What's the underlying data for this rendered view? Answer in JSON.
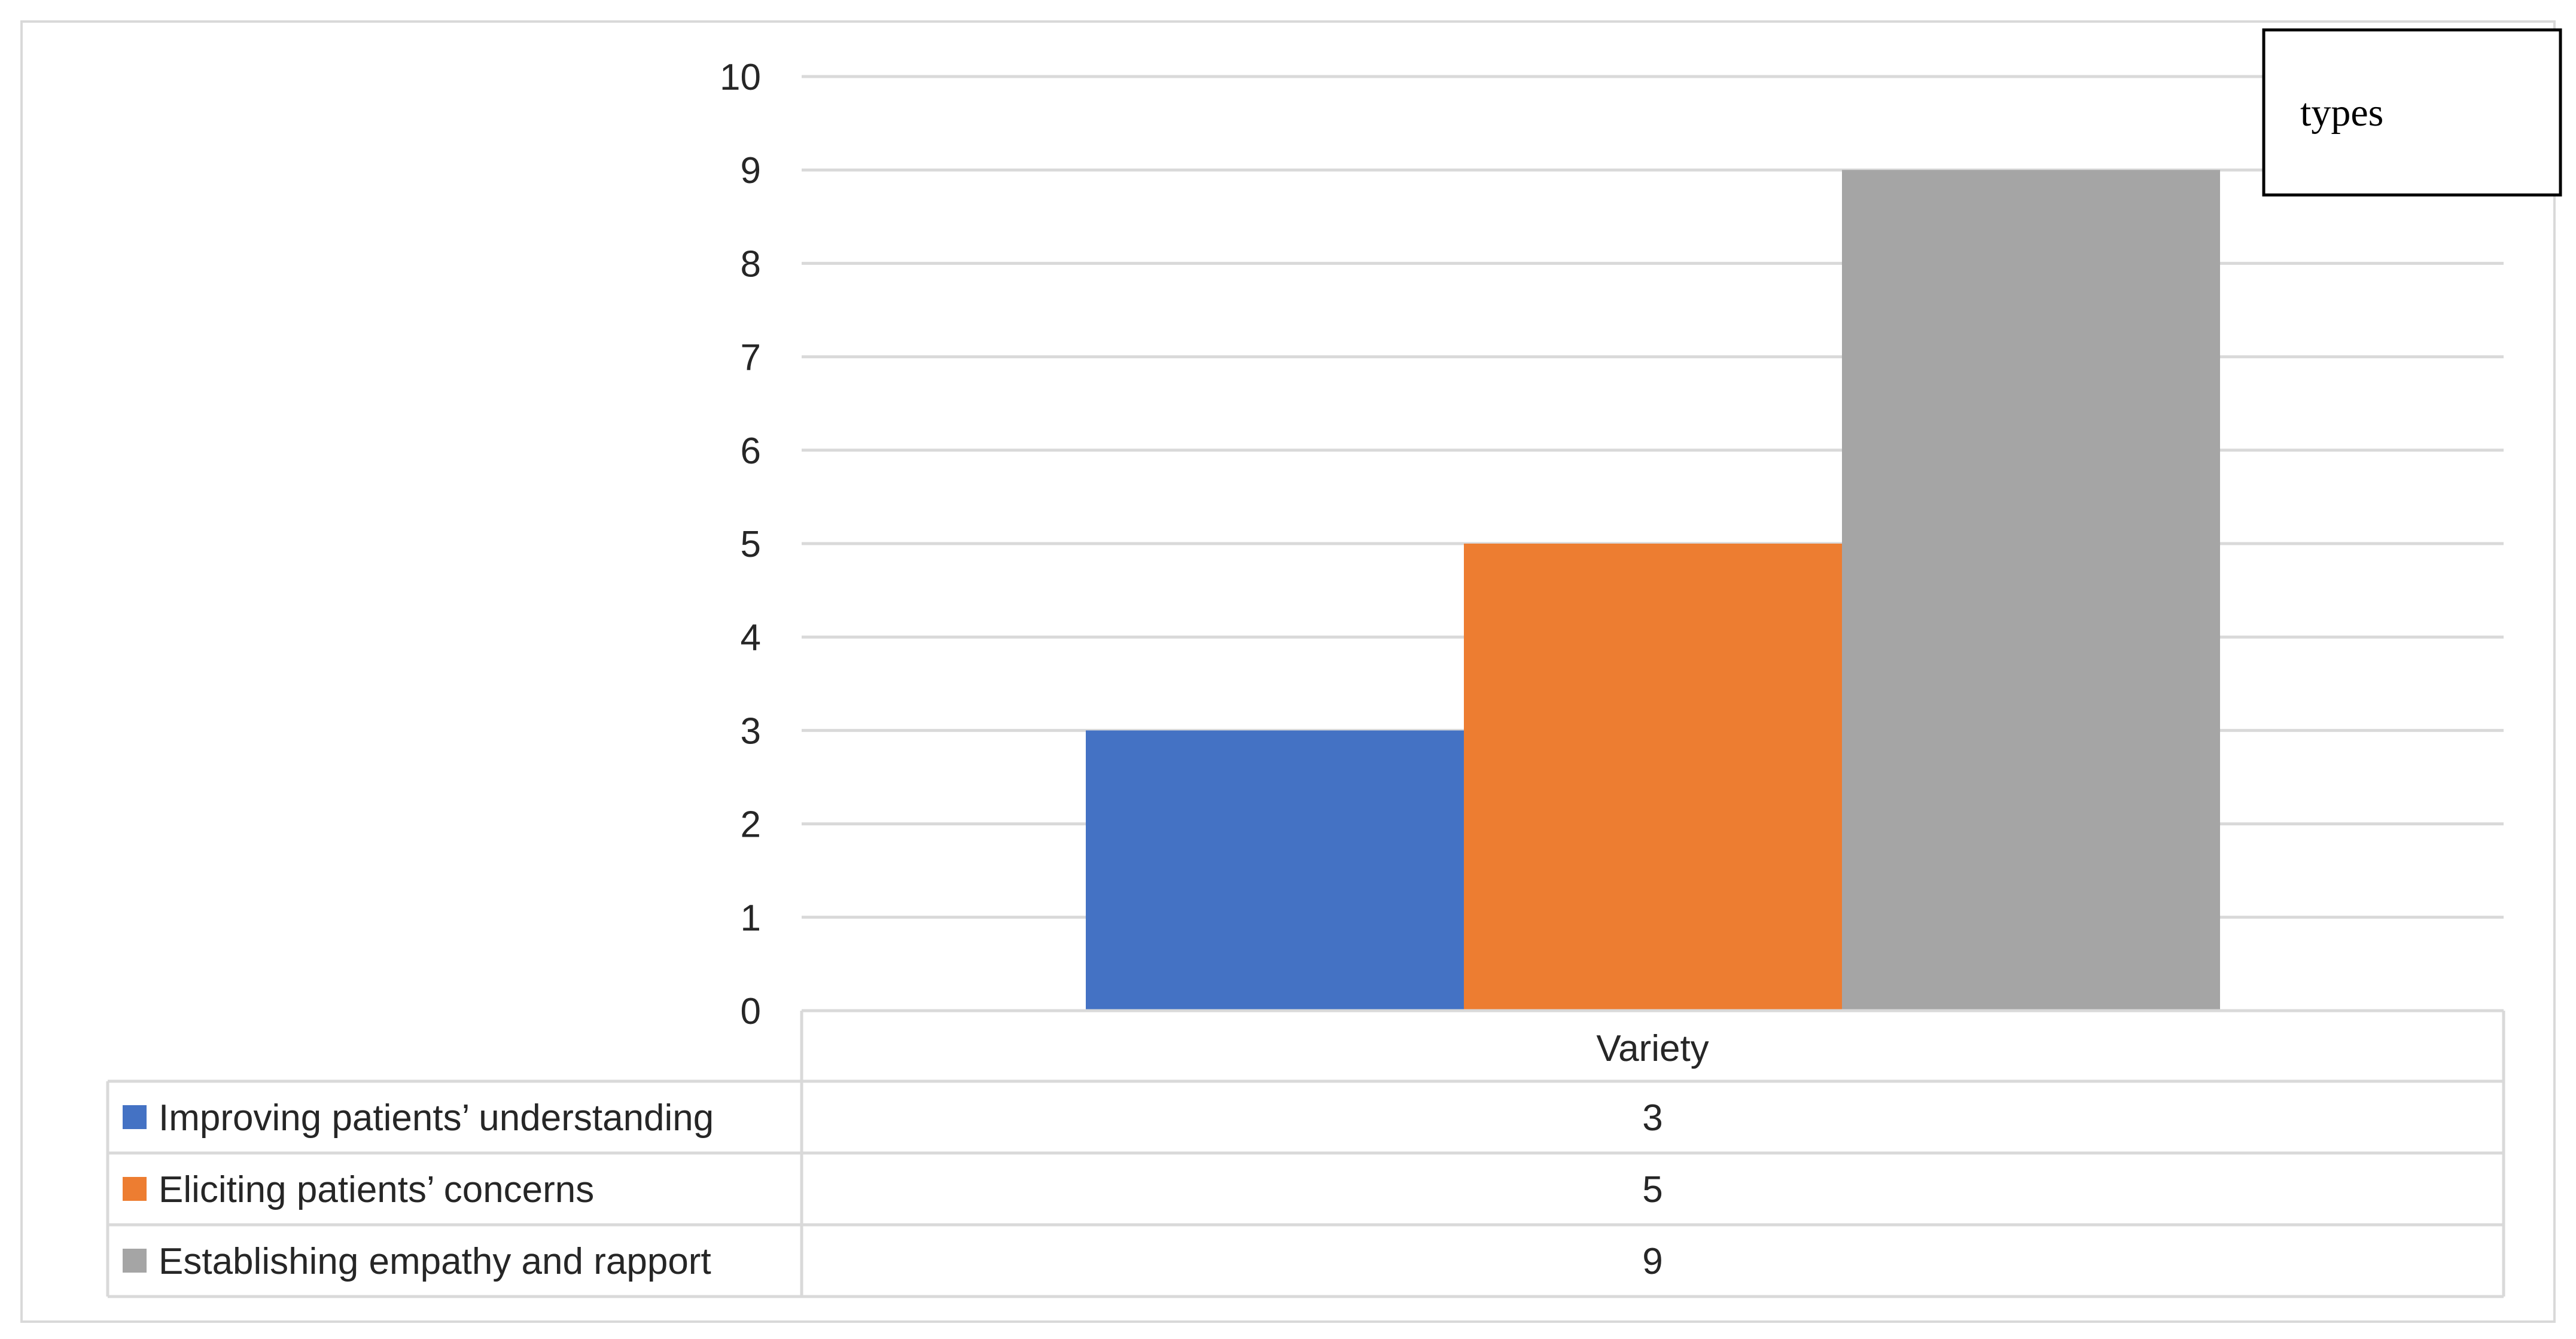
{
  "chart_data": {
    "type": "bar",
    "categories": [
      "Variety"
    ],
    "series": [
      {
        "name": "Improving patients’ understanding",
        "values": [
          3
        ],
        "color": "#4472c4"
      },
      {
        "name": "Eliciting patients’ concerns",
        "values": [
          5
        ],
        "color": "#ed7d31"
      },
      {
        "name": "Establishing empathy and rapport",
        "values": [
          9
        ],
        "color": "#a5a5a5"
      }
    ],
    "ylim": [
      0,
      10
    ],
    "yticks": [
      0,
      1,
      2,
      3,
      4,
      5,
      6,
      7,
      8,
      9,
      10
    ],
    "grid": true,
    "legend": "data-table",
    "annotation": "types"
  }
}
